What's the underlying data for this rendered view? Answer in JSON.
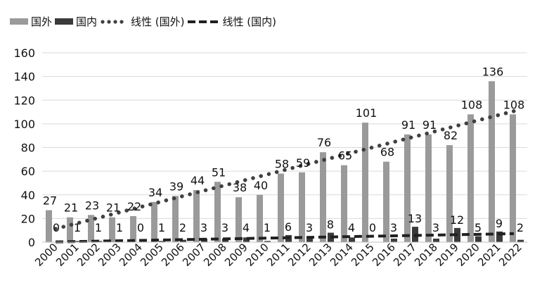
{
  "colors": {
    "foreign": "#9a9a9a",
    "domestic": "#3a3a3a",
    "trend_foreign": "#404040",
    "trend_domestic": "#202020",
    "gridline": "#d9d9d9",
    "text": "#111111"
  },
  "chart_data": {
    "type": "bar",
    "title": "",
    "xlabel": "",
    "ylabel": "",
    "ylim": [
      0,
      160
    ],
    "yticks": [
      0,
      20,
      40,
      60,
      80,
      100,
      120,
      140,
      160
    ],
    "grid": true,
    "legend_position": "top-left",
    "categories": [
      "2000",
      "2001",
      "2002",
      "2003",
      "2004",
      "2005",
      "2006",
      "2007",
      "2008",
      "2009",
      "2010",
      "2011",
      "2012",
      "2013",
      "2014",
      "2015",
      "2016",
      "2017",
      "2018",
      "2019",
      "2020",
      "2021",
      "2022"
    ],
    "series": [
      {
        "name": "国外",
        "values": [
          27,
          21,
          23,
          21,
          22,
          34,
          39,
          44,
          51,
          38,
          40,
          58,
          59,
          76,
          65,
          101,
          68,
          91,
          91,
          82,
          108,
          136,
          108
        ]
      },
      {
        "name": "国内",
        "values": [
          0,
          1,
          1,
          1,
          0,
          1,
          2,
          3,
          3,
          4,
          1,
          6,
          3,
          8,
          4,
          0,
          3,
          13,
          3,
          12,
          5,
          9,
          2
        ]
      }
    ],
    "trendlines": [
      {
        "name": "线性 (国外)",
        "style": "dotted",
        "of": "国外"
      },
      {
        "name": "线性 (国内)",
        "style": "dashed",
        "of": "国内"
      }
    ]
  }
}
